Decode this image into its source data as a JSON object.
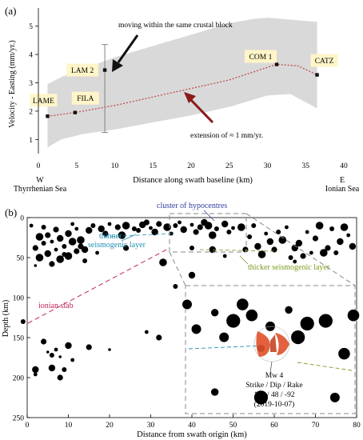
{
  "panel_a": {
    "panel_label": "(a)",
    "ylabel": "Velocity - Easting (mm/yr.)",
    "xlabel": "Distance along swath baseline (km)",
    "west_dir": "W",
    "west_sea": "Thyrrhenian Sea",
    "east_dir": "E",
    "east_sea": "Ionian Sea",
    "annotation_top": "moving within the same crustal block",
    "annotation_bottom": "extension of ≈ 1 mm/yr."
  },
  "panel_b": {
    "panel_label": "(b)",
    "ylabel": "Depth (km)",
    "xlabel": "Distance from swath origin (km)",
    "cluster_label": "cluster of hypocentres",
    "thinner_label_1": "thinner",
    "thinner_label_2": "seismogenic layer",
    "thicker_label": "thicker seismogenic layer",
    "ionian_label": "ionian slab",
    "mech_line1": "Mw 4",
    "mech_line2": "Strike / Dip / Rake",
    "mech_line3": "199 / 48 / -92",
    "mech_line4": "(2019-10-07)"
  },
  "colors": {
    "envelope": "#d9d9d9",
    "trend": "#c0504d",
    "arrow_black": "#111111",
    "arrow_red": "#8b1a1a",
    "cluster_text": "#2f3f9f",
    "thinner_text": "#1f8fb0",
    "thicker_text": "#7a9a1f",
    "ionian_text": "#c0245a",
    "beachball": "#e0502a",
    "label_bg": "#fff5c8"
  },
  "chart_data": [
    {
      "type": "scatter",
      "xlim": [
        0,
        40
      ],
      "ylim": [
        0.5,
        5.5
      ],
      "xticks": [
        0,
        5,
        10,
        15,
        20,
        25,
        30,
        35,
        40
      ],
      "yticks": [
        1,
        2,
        3,
        4,
        5
      ],
      "grid": false,
      "stations": [
        {
          "name": "LAME",
          "x": 1.2,
          "y": 1.82
        },
        {
          "name": "FILA",
          "x": 4.8,
          "y": 1.95
        },
        {
          "name": "LAM 2",
          "x": 8.7,
          "y": 3.45,
          "err_low": 1.25,
          "err_high": 4.35
        },
        {
          "name": "COM 1",
          "x": 31.2,
          "y": 3.65
        },
        {
          "name": "CATZ",
          "x": 36.5,
          "y": 3.28
        }
      ],
      "trend": {
        "x": [
          1.2,
          4.8,
          10,
          15,
          20,
          25,
          31.2,
          34,
          36.5
        ],
        "y": [
          1.82,
          1.95,
          2.2,
          2.5,
          2.8,
          3.1,
          3.65,
          3.6,
          3.28
        ]
      },
      "envelope_upper": {
        "x": [
          1.2,
          3,
          6,
          10,
          15,
          20,
          25,
          28,
          30,
          36.5
        ],
        "y": [
          2.95,
          3.2,
          3.5,
          3.9,
          4.3,
          4.7,
          5.1,
          5.25,
          5.3,
          5.15
        ]
      },
      "envelope_lower": {
        "x": [
          36.5,
          33,
          30,
          25,
          20,
          15,
          10,
          6,
          3,
          1.2
        ],
        "y": [
          2.1,
          2.6,
          2.55,
          2.15,
          1.85,
          1.6,
          1.35,
          1.2,
          1.0,
          0.72
        ]
      }
    },
    {
      "type": "scatter",
      "xlim": [
        0,
        80
      ],
      "ylim": [
        250,
        0
      ],
      "xticks": [
        0,
        10,
        20,
        30,
        40,
        50,
        60,
        70,
        80
      ],
      "yticks": [
        0,
        50,
        100,
        150,
        200,
        250
      ],
      "grid": false,
      "series": [
        {
          "points": [
            [
              1,
              10
            ],
            [
              2,
              38
            ],
            [
              3,
              24
            ],
            [
              4,
              12
            ],
            [
              5,
              45
            ],
            [
              6,
              30
            ],
            [
              7,
              15
            ],
            [
              8,
              52
            ],
            [
              9,
              36
            ],
            [
              10,
              20
            ],
            [
              11,
              8
            ],
            [
              12,
              42
            ],
            [
              13,
              28
            ],
            [
              14,
              54
            ],
            [
              15,
              16
            ],
            [
              2,
              60
            ],
            [
              6,
              58
            ],
            [
              10,
              48
            ],
            [
              4,
              32
            ],
            [
              8,
              26
            ],
            [
              12,
              14
            ],
            [
              13,
              36
            ],
            [
              11,
              30
            ],
            [
              9,
              46
            ],
            [
              14,
              40
            ],
            [
              7,
              40
            ],
            [
              5,
              22
            ],
            [
              3,
              50
            ],
            [
              16,
              10
            ],
            [
              18,
              14
            ],
            [
              20,
              8
            ],
            [
              22,
              12
            ],
            [
              24,
              10
            ],
            [
              26,
              14
            ],
            [
              28,
              9
            ],
            [
              30,
              13
            ],
            [
              32,
              8
            ],
            [
              34,
              12
            ],
            [
              36,
              10
            ],
            [
              38,
              15
            ],
            [
              40,
              9
            ],
            [
              42,
              12
            ],
            [
              44,
              10
            ],
            [
              46,
              14
            ],
            [
              48,
              8
            ],
            [
              50,
              13
            ],
            [
              19,
              20
            ],
            [
              23,
              22
            ],
            [
              27,
              16
            ],
            [
              31,
              18
            ],
            [
              35,
              20
            ],
            [
              41,
              18
            ],
            [
              45,
              22
            ],
            [
              49,
              18
            ],
            [
              43,
              6
            ],
            [
              37,
              6
            ],
            [
              29,
              6
            ],
            [
              52,
              12
            ],
            [
              54,
              24
            ],
            [
              56,
              36
            ],
            [
              58,
              20
            ],
            [
              60,
              40
            ],
            [
              62,
              28
            ],
            [
              64,
              50
            ],
            [
              66,
              32
            ],
            [
              68,
              18
            ],
            [
              70,
              26
            ],
            [
              72,
              44
            ],
            [
              74,
              14
            ],
            [
              76,
              30
            ],
            [
              78,
              22
            ],
            [
              53,
              40
            ],
            [
              57,
              46
            ],
            [
              61,
              18
            ],
            [
              65,
              38
            ],
            [
              69,
              44
            ],
            [
              73,
              38
            ],
            [
              77,
              12
            ],
            [
              55,
              10
            ],
            [
              59,
              30
            ],
            [
              63,
              12
            ],
            [
              67,
              48
            ],
            [
              71,
              10
            ],
            [
              75,
              44
            ],
            [
              79,
              36
            ],
            [
              17,
              44
            ],
            [
              24,
              38
            ],
            [
              33,
              56
            ],
            [
              40,
              38
            ],
            [
              45,
              40
            ],
            [
              48,
              48
            ],
            [
              36,
              86
            ],
            [
              40,
              72
            ],
            [
              29,
              143
            ],
            [
              32,
              150
            ],
            [
              65,
              55
            ],
            [
              46,
              210
            ],
            [
              2,
              190
            ],
            [
              2,
              196
            ],
            [
              4,
              155
            ],
            [
              5,
              168
            ],
            [
              6,
              172
            ],
            [
              6,
              188
            ],
            [
              7,
              165
            ],
            [
              8,
              200
            ],
            [
              8,
              174
            ],
            [
              9,
              190
            ],
            [
              10,
              160
            ],
            [
              11,
              178
            ],
            [
              15,
              162
            ],
            [
              20,
              165
            ],
            [
              -1,
              130
            ]
          ]
        }
      ],
      "inset_fault_plane": {
        "strike": 199,
        "dip": 48,
        "rake": -92,
        "magnitude": 4,
        "date": "2019-10-07"
      }
    }
  ]
}
